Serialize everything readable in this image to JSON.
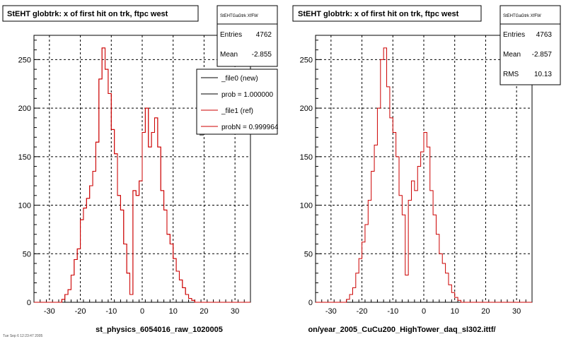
{
  "canvas": {
    "background": "#ffffff",
    "hist_color": "#cc0000",
    "ref_color": "#000000"
  },
  "left": {
    "title": "StEHT globtrk: x of first hit on trk, ftpc west",
    "stats": {
      "name": "StEHTGaGtrk XfFW",
      "entries_label": "Entries",
      "entries": "4762",
      "mean_label": "Mean",
      "mean": "-2.855"
    },
    "legend": [
      {
        "label": "_file0 (new)",
        "color": "#000000"
      },
      {
        "label": "prob = 1.000000",
        "color": "#000000"
      },
      {
        "label": "_file1 (ref)",
        "color": "#cc0000"
      },
      {
        "label": "probN = 0.999964",
        "color": "#cc0000"
      }
    ],
    "xlabel": "st_physics_6054016_raw_1020005",
    "footer": "Tue Sep 6 12:23:47 2005"
  },
  "right": {
    "title": "StEHT globtrk: x of first hit on trk, ftpc west",
    "stats": {
      "name": "StEHTGaGtrk XfFW",
      "entries_label": "Entries",
      "entries": "4763",
      "mean_label": "Mean",
      "mean": "-2.857",
      "rms_label": "RMS",
      "rms": "10.13"
    },
    "xlabel": "on/year_2005_CuCu200_HighTower_daq_sl302.ittf/"
  },
  "chart_data": [
    {
      "type": "histogram",
      "title": "StEHT globtrk: x of first hit on trk, ftpc west",
      "xlim": [
        -35,
        35
      ],
      "ylim": [
        0,
        275
      ],
      "x_ticks": [
        -30,
        -20,
        -10,
        0,
        10,
        20,
        30
      ],
      "y_ticks": [
        0,
        50,
        100,
        150,
        200,
        250
      ],
      "grid": true,
      "bin_edges_start": -35,
      "bin_width": 1,
      "series": [
        {
          "name": "_file0 (new)",
          "values": [
            0,
            0,
            0,
            0,
            0,
            0,
            0,
            0,
            0,
            3,
            8,
            13,
            28,
            44,
            55,
            85,
            97,
            107,
            120,
            135,
            165,
            230,
            262,
            240,
            215,
            178,
            153,
            110,
            95,
            60,
            30,
            8,
            115,
            110,
            125,
            175,
            200,
            160,
            175,
            190,
            160,
            115,
            95,
            70,
            60,
            45,
            32,
            23,
            15,
            8,
            4,
            2,
            0,
            0,
            0,
            0,
            0,
            0,
            0,
            0,
            0,
            0,
            0,
            0,
            0,
            0,
            0,
            0,
            0,
            0
          ]
        },
        {
          "name": "_file1 (ref)",
          "values": [
            0,
            0,
            0,
            0,
            0,
            0,
            0,
            0,
            0,
            3,
            8,
            13,
            28,
            44,
            55,
            85,
            97,
            107,
            120,
            135,
            165,
            230,
            262,
            240,
            215,
            178,
            153,
            110,
            95,
            60,
            30,
            8,
            115,
            110,
            125,
            175,
            200,
            160,
            175,
            190,
            160,
            115,
            95,
            70,
            60,
            45,
            32,
            23,
            15,
            8,
            4,
            2,
            0,
            0,
            0,
            0,
            0,
            0,
            0,
            0,
            0,
            0,
            0,
            0,
            0,
            0,
            0,
            0,
            0,
            0
          ]
        }
      ],
      "legend_position": "top-right",
      "xlabel": "st_physics_6054016_raw_1020005"
    },
    {
      "type": "histogram",
      "title": "StEHT globtrk: x of first hit on trk, ftpc west",
      "xlim": [
        -35,
        35
      ],
      "ylim": [
        0,
        275
      ],
      "x_ticks": [
        -30,
        -20,
        -10,
        0,
        10,
        20,
        30
      ],
      "y_ticks": [
        0,
        50,
        100,
        150,
        200,
        250
      ],
      "grid": true,
      "bin_edges_start": -35,
      "bin_width": 1,
      "series": [
        {
          "name": "_file1 (ref)",
          "values": [
            0,
            0,
            0,
            0,
            0,
            0,
            0,
            0,
            0,
            0,
            3,
            8,
            15,
            30,
            45,
            62,
            80,
            105,
            135,
            162,
            200,
            250,
            262,
            222,
            190,
            175,
            150,
            110,
            90,
            28,
            105,
            125,
            115,
            140,
            155,
            175,
            160,
            115,
            90,
            70,
            50,
            40,
            30,
            18,
            10,
            5,
            2,
            0,
            0,
            0,
            0,
            0,
            0,
            0,
            0,
            0,
            0,
            0,
            0,
            0,
            0,
            0,
            0,
            0,
            0,
            0,
            0,
            0,
            0,
            0
          ]
        }
      ],
      "xlabel": "on/year_2005_CuCu200_HighTower_daq_sl302.ittf/"
    }
  ]
}
